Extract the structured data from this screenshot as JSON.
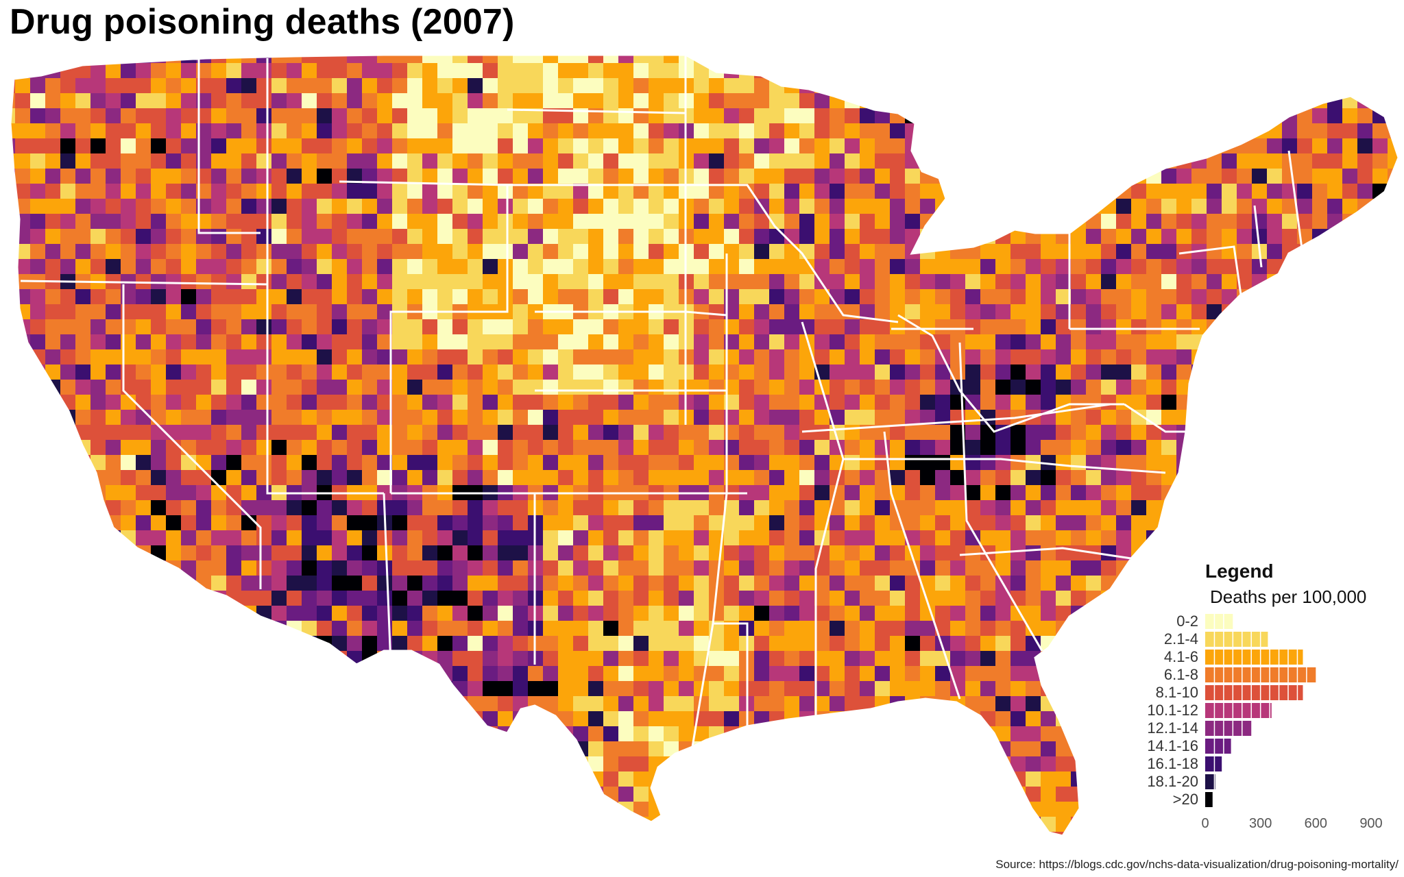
{
  "title": "Drug poisoning deaths (2007)",
  "source": "Source: https://blogs.cdc.gov/nchs-data-visualization/drug-poisoning-mortality/",
  "legend": {
    "title": "Legend",
    "subtitle": "Deaths per 100,000",
    "axis_ticks": [
      "0",
      "300",
      "600",
      "900"
    ]
  },
  "chart_data": {
    "type": "choropleth with histogram legend",
    "map": "Contiguous United States, counties",
    "variable": "Deaths per 100,000",
    "year": "2007",
    "bins": [
      {
        "label": "0-2",
        "color": "#fcfdbf",
        "count": 150
      },
      {
        "label": "2.1-4",
        "color": "#f8d75a",
        "count": 340
      },
      {
        "label": "4.1-6",
        "color": "#fca50a",
        "count": 530
      },
      {
        "label": "6.1-8",
        "color": "#f07c2a",
        "count": 600
      },
      {
        "label": "8.1-10",
        "color": "#dd513a",
        "count": 530
      },
      {
        "label": "10.1-12",
        "color": "#b73779",
        "count": 360
      },
      {
        "label": "12.1-14",
        "color": "#8c2981",
        "count": 250
      },
      {
        "label": "14.1-16",
        "color": "#6a1c81",
        "count": 140
      },
      {
        "label": "16.1-18",
        "color": "#3b0f70",
        "count": 90
      },
      {
        "label": "18.1-20",
        "color": "#1d1147",
        "count": 55
      },
      {
        "label": ">20",
        "color": "#000004",
        "count": 40
      }
    ],
    "xlim": [
      0,
      900
    ],
    "legend_position": "bottom-right"
  }
}
